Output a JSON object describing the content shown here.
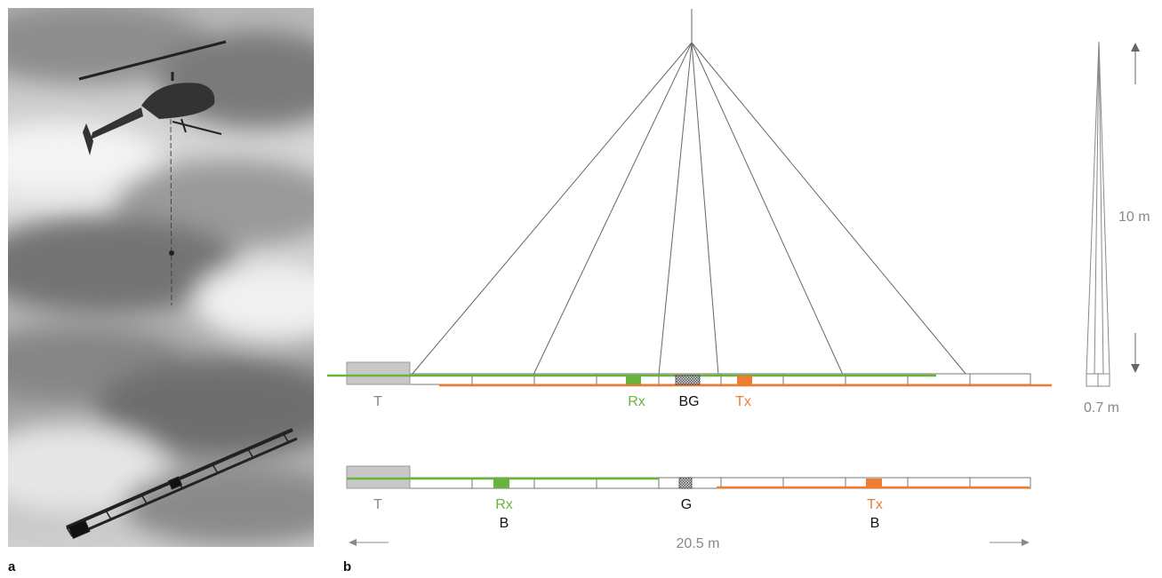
{
  "panels": {
    "a": "a",
    "b": "b"
  },
  "labels": {
    "upper": {
      "tail": "T",
      "rx": "Rx",
      "bird": "BG",
      "tx": "Tx"
    },
    "lower": {
      "tail": "T",
      "rx": "Rx",
      "rx_sub": "B",
      "g": "G",
      "tx": "Tx",
      "tx_sub": "B"
    },
    "height_dim": "10 m",
    "width_dim": "0.7 m",
    "length_dim": "20.5 m"
  },
  "colors": {
    "rx": "#6ab23e",
    "tx": "#ee7d31",
    "frame": "#777777",
    "tail": "#c8c8c8",
    "dim": "#888888"
  },
  "icons": {
    "arrow_up": "arrow-up-icon",
    "arrow_down": "arrow-down-icon",
    "arrow_left": "arrow-left-icon",
    "arrow_right": "arrow-right-icon"
  }
}
